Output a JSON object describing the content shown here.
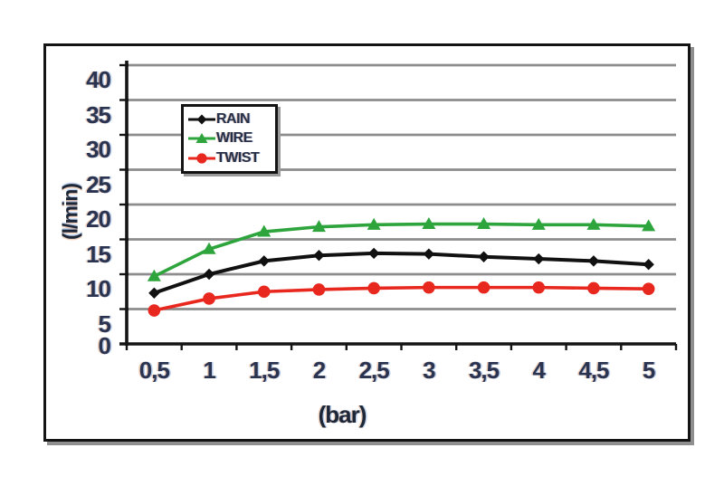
{
  "page": {
    "background": "#ffffff"
  },
  "chart_data": {
    "type": "line",
    "title": "",
    "xlabel": "(bar)",
    "ylabel": "(l/min)",
    "x": [
      0.5,
      1,
      1.5,
      2,
      2.5,
      3,
      3.5,
      4,
      4.5,
      5
    ],
    "x_tick_labels": [
      "0,5",
      "1",
      "1,5",
      "2",
      "2,5",
      "3",
      "3,5",
      "4",
      "4,5",
      "5"
    ],
    "yticks": [
      0,
      5,
      10,
      15,
      20,
      25,
      30,
      35,
      40
    ],
    "y_tick_labels": [
      "0",
      "5",
      "10",
      "15",
      "20",
      "25",
      "30",
      "35",
      "40"
    ],
    "ylim": [
      0,
      42.5
    ],
    "xlim_categories": true,
    "grid": true,
    "legend_position": "upper-left-inside",
    "legend": [
      "RAIN",
      "WIRE",
      "TWIST"
    ],
    "series": [
      {
        "name": "RAIN",
        "color": "#111111",
        "marker": "diamond",
        "values": [
          7.3,
          10.0,
          11.9,
          12.7,
          13.0,
          12.9,
          12.5,
          12.2,
          11.9,
          11.4
        ]
      },
      {
        "name": "WIRE",
        "color": "#2ea43c",
        "marker": "triangle",
        "values": [
          9.7,
          13.6,
          16.1,
          16.8,
          17.1,
          17.2,
          17.2,
          17.1,
          17.1,
          16.9
        ]
      },
      {
        "name": "TWIST",
        "color": "#e8281e",
        "marker": "circle",
        "values": [
          4.8,
          6.5,
          7.5,
          7.8,
          8.0,
          8.1,
          8.1,
          8.1,
          8.0,
          7.9
        ]
      }
    ]
  },
  "colors": {
    "gridline": "#8c8c8c",
    "axis": "#141414",
    "label_text": "#2a3350",
    "frame_shadow": "#8f8f8f"
  }
}
